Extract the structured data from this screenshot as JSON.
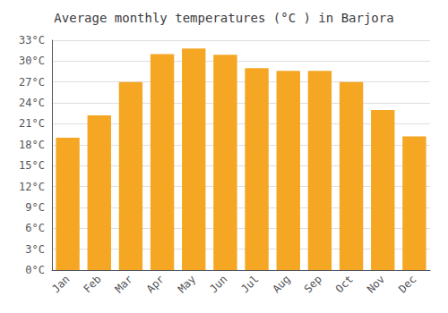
{
  "chart_data": {
    "type": "bar",
    "title": "Average monthly temperatures (°C ) in Barjora",
    "categories": [
      "Jan",
      "Feb",
      "Mar",
      "Apr",
      "May",
      "Jun",
      "Jul",
      "Aug",
      "Sep",
      "Oct",
      "Nov",
      "Dec"
    ],
    "values": [
      19.0,
      22.2,
      27.0,
      31.0,
      31.8,
      30.9,
      29.0,
      28.6,
      28.6,
      27.0,
      23.0,
      19.2
    ],
    "color": "#F5A623",
    "ylim": [
      0,
      33
    ],
    "yticks": [
      {
        "value": 0,
        "label": "0°C"
      },
      {
        "value": 3,
        "label": "3°C"
      },
      {
        "value": 6,
        "label": "6°C"
      },
      {
        "value": 9,
        "label": "9°C"
      },
      {
        "value": 12,
        "label": "12°C"
      },
      {
        "value": 15,
        "label": "15°C"
      },
      {
        "value": 18,
        "label": "18°C"
      },
      {
        "value": 21,
        "label": "21°C"
      },
      {
        "value": 24,
        "label": "24°C"
      },
      {
        "value": 27,
        "label": "27°C"
      },
      {
        "value": 30,
        "label": "30°C"
      },
      {
        "value": 33,
        "label": "33°C"
      }
    ],
    "grid": true
  }
}
